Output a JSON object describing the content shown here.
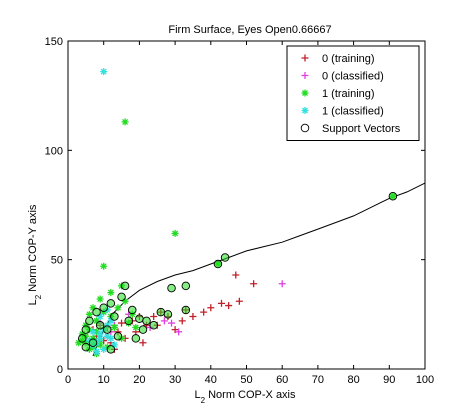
{
  "chart_data": {
    "type": "scatter",
    "title": "Firm Surface, Eyes Open0.66667",
    "xlabel": {
      "prefix": "L",
      "sub": "2",
      "rest": " Norm COP-X axis"
    },
    "ylabel": {
      "prefix": "L",
      "sub": "2",
      "rest": " Norm COP-Y axis"
    },
    "xlim": [
      0,
      100
    ],
    "ylim": [
      0,
      150
    ],
    "xticks": [
      0,
      10,
      20,
      30,
      40,
      50,
      60,
      70,
      80,
      90,
      100
    ],
    "yticks": [
      0,
      50,
      100,
      150
    ],
    "grid": false,
    "legend_position": "top-right",
    "colors": {
      "class0_training": "#c0202a",
      "class0_classified": "#e040e0",
      "class1_training": "#22dd22",
      "class1_classified": "#33e0e0",
      "support_vector": "#000000",
      "boundary": "#000000"
    },
    "legend": [
      {
        "label": "0 (training)",
        "marker": "plus",
        "color_key": "class0_training"
      },
      {
        "label": "0 (classified)",
        "marker": "plus",
        "color_key": "class0_classified"
      },
      {
        "label": "1 (training)",
        "marker": "star",
        "color_key": "class1_training"
      },
      {
        "label": "1 (classified)",
        "marker": "star",
        "color_key": "class1_classified"
      },
      {
        "label": "Support Vectors",
        "marker": "circle",
        "color_key": "support_vector"
      }
    ],
    "series": [
      {
        "name": "0 (training)",
        "marker": "plus",
        "color_key": "class0_training",
        "points": [
          [
            30,
            18
          ],
          [
            32,
            22
          ],
          [
            33,
            27
          ],
          [
            35,
            24
          ],
          [
            38,
            26
          ],
          [
            40,
            28
          ],
          [
            43,
            30
          ],
          [
            45,
            29
          ],
          [
            47,
            43
          ],
          [
            48,
            31
          ],
          [
            52,
            39
          ],
          [
            28,
            24
          ],
          [
            26,
            26
          ],
          [
            22,
            20
          ],
          [
            18,
            22
          ],
          [
            16,
            14
          ],
          [
            14,
            17
          ],
          [
            12,
            12
          ],
          [
            15,
            21
          ],
          [
            20,
            24
          ],
          [
            24,
            24
          ],
          [
            25,
            20
          ],
          [
            19,
            17
          ],
          [
            13,
            9
          ],
          [
            11,
            19
          ],
          [
            9,
            20
          ],
          [
            8,
            15
          ],
          [
            7,
            18
          ],
          [
            10,
            13
          ],
          [
            21,
            12
          ]
        ]
      },
      {
        "name": "0 (classified)",
        "marker": "plus",
        "color_key": "class0_classified",
        "points": [
          [
            60,
            39
          ],
          [
            29,
            21
          ],
          [
            31,
            17
          ],
          [
            27,
            22
          ],
          [
            23,
            19
          ],
          [
            17,
            25
          ],
          [
            13,
            20
          ],
          [
            11,
            15
          ],
          [
            9,
            21
          ],
          [
            12,
            17
          ]
        ]
      },
      {
        "name": "1 (training)",
        "marker": "star",
        "color_key": "class1_training",
        "points": [
          [
            16,
            113
          ],
          [
            30,
            62
          ],
          [
            10,
            47
          ],
          [
            91,
            79
          ],
          [
            42,
            48
          ],
          [
            15,
            38
          ],
          [
            12,
            35
          ],
          [
            9,
            32
          ],
          [
            7,
            28
          ],
          [
            6,
            25
          ],
          [
            8,
            22
          ],
          [
            5,
            20
          ],
          [
            4,
            16
          ],
          [
            5,
            12
          ],
          [
            6,
            9
          ],
          [
            4,
            13
          ],
          [
            7,
            14
          ],
          [
            8,
            17
          ],
          [
            9,
            13
          ],
          [
            11,
            10
          ],
          [
            12,
            24
          ],
          [
            14,
            28
          ],
          [
            16,
            31
          ],
          [
            18,
            25
          ],
          [
            13,
            19
          ],
          [
            10,
            26
          ],
          [
            15,
            14
          ],
          [
            6,
            18
          ],
          [
            7,
            10
          ],
          [
            8,
            7
          ],
          [
            9,
            11
          ],
          [
            17,
            21
          ],
          [
            19,
            19
          ],
          [
            3,
            12
          ],
          [
            5,
            15
          ]
        ]
      },
      {
        "name": "1 (classified)",
        "marker": "star",
        "color_key": "class1_classified",
        "points": [
          [
            10,
            136
          ],
          [
            9,
            14
          ],
          [
            8,
            12
          ],
          [
            10,
            18
          ],
          [
            11,
            20
          ],
          [
            12,
            22
          ],
          [
            7,
            11
          ],
          [
            6,
            13
          ],
          [
            9,
            16
          ],
          [
            11,
            15
          ],
          [
            10,
            9
          ],
          [
            8,
            8
          ],
          [
            12,
            14
          ],
          [
            13,
            11
          ],
          [
            7,
            17
          ],
          [
            9,
            24
          ],
          [
            11,
            27
          ]
        ]
      },
      {
        "name": "Support Vectors",
        "marker": "circle",
        "color_key": "support_vector",
        "points": [
          [
            91,
            79
          ],
          [
            44,
            51
          ],
          [
            42,
            48
          ],
          [
            33,
            38
          ],
          [
            29,
            37
          ],
          [
            16,
            38
          ],
          [
            15,
            33
          ],
          [
            12,
            30
          ],
          [
            10,
            28
          ],
          [
            8,
            26
          ],
          [
            6,
            22
          ],
          [
            5,
            18
          ],
          [
            4,
            14
          ],
          [
            5,
            10
          ],
          [
            7,
            12
          ],
          [
            9,
            20
          ],
          [
            11,
            18
          ],
          [
            13,
            24
          ],
          [
            18,
            27
          ],
          [
            20,
            23
          ],
          [
            22,
            22
          ],
          [
            26,
            26
          ],
          [
            28,
            25
          ],
          [
            33,
            27
          ],
          [
            17,
            22
          ],
          [
            14,
            15
          ],
          [
            21,
            18
          ],
          [
            24,
            20
          ],
          [
            19,
            14
          ],
          [
            12,
            9
          ]
        ]
      }
    ],
    "boundary_line": {
      "x": [
        7,
        10,
        13,
        16,
        20,
        25,
        30,
        35,
        40,
        45,
        50,
        55,
        60,
        65,
        70,
        75,
        80,
        85,
        90,
        95,
        100
      ],
      "y": [
        6,
        18,
        26,
        31,
        36,
        40,
        43,
        45,
        48,
        51,
        54,
        56,
        58,
        61,
        64,
        67,
        70,
        74,
        78,
        81,
        85
      ]
    }
  }
}
